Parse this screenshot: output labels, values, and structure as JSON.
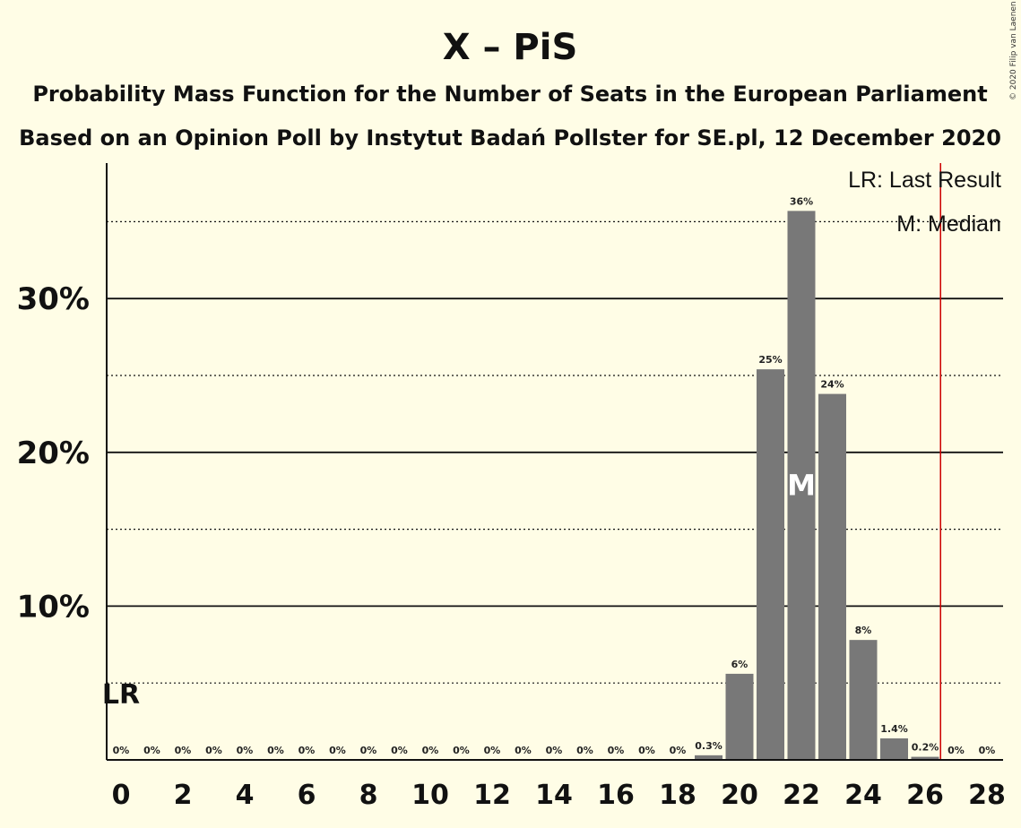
{
  "header": {
    "title": "X – PiS",
    "subtitle1": "Probability Mass Function for the Number of Seats in the European Parliament",
    "subtitle2": "Based on an Opinion Poll by Instytut Badań Pollster for SE.pl, 12 December 2020",
    "copyright": "© 2020 Filip van Laenen"
  },
  "legend": {
    "last_result": "LR: Last Result",
    "median": "M: Median"
  },
  "markers": {
    "last_result_label": "LR",
    "last_result_seats": 0,
    "median_label": "M",
    "median_seats": 22,
    "majority_line_seats": 26.5
  },
  "colors": {
    "background": "#FFFDE6",
    "bar": "#787878",
    "majority_line": "#CC0000"
  },
  "chart_data": {
    "type": "bar",
    "xlim": [
      0,
      28
    ],
    "ylim": [
      0,
      38.5
    ],
    "x_ticks": [
      0,
      2,
      4,
      6,
      8,
      10,
      12,
      14,
      16,
      18,
      20,
      22,
      24,
      26,
      28
    ],
    "y_ticks": [
      {
        "value": 10,
        "label": "10%"
      },
      {
        "value": 20,
        "label": "20%"
      },
      {
        "value": 30,
        "label": "30%"
      }
    ],
    "y_dotted_gridlines": [
      5,
      15,
      25,
      35
    ],
    "seats": [
      0,
      1,
      2,
      3,
      4,
      5,
      6,
      7,
      8,
      9,
      10,
      11,
      12,
      13,
      14,
      15,
      16,
      17,
      18,
      19,
      20,
      21,
      22,
      23,
      24,
      25,
      26,
      27,
      28
    ],
    "values": [
      0,
      0,
      0,
      0,
      0,
      0,
      0,
      0,
      0,
      0,
      0,
      0,
      0,
      0,
      0,
      0,
      0,
      0,
      0,
      0.3,
      5.6,
      25.4,
      35.7,
      23.8,
      7.8,
      1.4,
      0.2,
      0,
      0
    ],
    "labels": [
      "0%",
      "0%",
      "0%",
      "0%",
      "0%",
      "0%",
      "0%",
      "0%",
      "0%",
      "0%",
      "0%",
      "0%",
      "0%",
      "0%",
      "0%",
      "0%",
      "0%",
      "0%",
      "0%",
      "0.3%",
      "6%",
      "25%",
      "36%",
      "24%",
      "8%",
      "1.4%",
      "0.2%",
      "0%",
      "0%"
    ]
  }
}
